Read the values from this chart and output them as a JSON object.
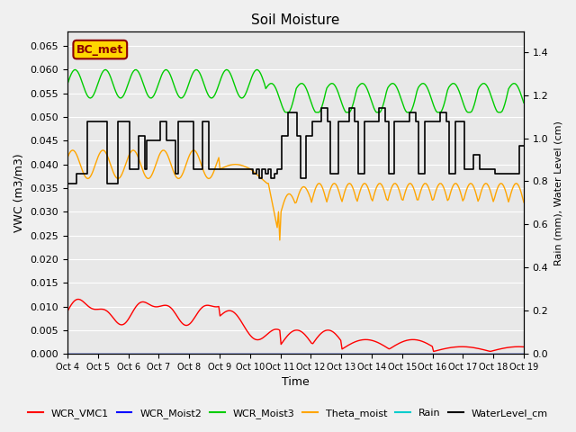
{
  "title": "Soil Moisture",
  "ylabel_left": "VWC (m3/m3)",
  "ylabel_right": "Rain (mm), Water Level (cm)",
  "xlabel": "Time",
  "ylim_left": [
    0.0,
    0.068
  ],
  "ylim_right": [
    0.0,
    1.4933
  ],
  "yticks_left": [
    0.0,
    0.005,
    0.01,
    0.015,
    0.02,
    0.025,
    0.03,
    0.035,
    0.04,
    0.045,
    0.05,
    0.055,
    0.06,
    0.065
  ],
  "yticks_right": [
    0.0,
    0.2,
    0.4,
    0.6,
    0.8,
    1.0,
    1.2,
    1.4
  ],
  "xtick_labels": [
    "Oct 4",
    "Oct 5",
    "Oct 6",
    "Oct 7",
    "Oct 8",
    "Oct 9",
    "Oct 10",
    "Oct 11",
    "Oct 12",
    "Oct 13",
    "Oct 14",
    "Oct 15",
    "Oct 16",
    "Oct 17",
    "Oct 18",
    "Oct 19"
  ],
  "background_color": "#f0f0f0",
  "plot_bg_color": "#e8e8e8",
  "annotation_text": "BC_met",
  "annotation_color": "#8B0000",
  "annotation_bg": "#FFD700",
  "legend_entries": [
    "WCR_VMC1",
    "WCR_Moist2",
    "WCR_Moist3",
    "Theta_moist",
    "Rain",
    "WaterLevel_cm"
  ],
  "line_colors": {
    "WCR_VMC1": "#ff0000",
    "WCR_Moist2": "#0000ff",
    "WCR_Moist3": "#00cc00",
    "Theta_moist": "#ffa500",
    "Rain": "#00cccc",
    "WaterLevel_cm": "#000000"
  }
}
